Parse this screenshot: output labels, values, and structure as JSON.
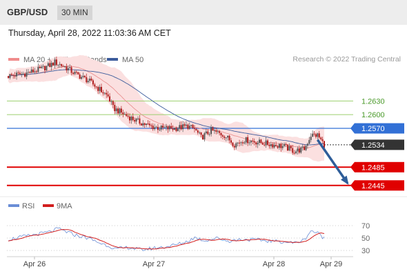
{
  "header": {
    "pair": "GBP/USD",
    "timeframe": "30 MIN"
  },
  "datetime": "Thursday, April 28, 2022 11:03:36 AM CET",
  "legend": {
    "ma20_label": "MA 20 + Bollinger Bands",
    "ma50_label": "MA 50",
    "copyright": "Research © 2022 Trading Central",
    "rsi_label": "RSI",
    "ma9_label": "9MA"
  },
  "colors": {
    "ma20": "#f08c8c",
    "ma50": "#3c5c9c",
    "rsi": "#6a8ed6",
    "ma9": "#d21e1e",
    "up": "#555555",
    "down": "#b01c1c",
    "resistance": "#9bcf6e",
    "support": "#e00000",
    "pivot": "#3270d6",
    "current": "#333333"
  },
  "chart_data": [
    {
      "type": "candlestick",
      "ylim": [
        1.2425,
        1.27
      ],
      "x_labels": [
        "Apr 26",
        "Apr 27",
        "Apr 28",
        "Apr 29"
      ],
      "levels": [
        {
          "label": "1.2630",
          "value": 1.263,
          "kind": "resistance"
        },
        {
          "label": "1.2600",
          "value": 1.26,
          "kind": "resistance"
        },
        {
          "label": "1.2570",
          "value": 1.257,
          "kind": "pivot"
        },
        {
          "label": "1.2534",
          "value": 1.2534,
          "kind": "current"
        },
        {
          "label": "1.2485",
          "value": 1.2485,
          "kind": "support"
        },
        {
          "label": "1.2445",
          "value": 1.2445,
          "kind": "support"
        }
      ],
      "close_keyframes": [
        [
          0,
          1.2685
        ],
        [
          10,
          1.269
        ],
        [
          20,
          1.27
        ],
        [
          26,
          1.271
        ],
        [
          28,
          1.2715
        ],
        [
          34,
          1.2705
        ],
        [
          40,
          1.269
        ],
        [
          48,
          1.2675
        ],
        [
          55,
          1.2655
        ],
        [
          60,
          1.264
        ],
        [
          63,
          1.2615
        ],
        [
          70,
          1.26
        ],
        [
          78,
          1.2585
        ],
        [
          85,
          1.2575
        ],
        [
          92,
          1.257
        ],
        [
          100,
          1.257
        ],
        [
          108,
          1.2575
        ],
        [
          112,
          1.2568
        ],
        [
          116,
          1.255
        ],
        [
          122,
          1.2565
        ],
        [
          130,
          1.2555
        ],
        [
          136,
          1.2535
        ],
        [
          142,
          1.2545
        ],
        [
          150,
          1.254
        ],
        [
          158,
          1.2535
        ],
        [
          166,
          1.253
        ],
        [
          172,
          1.252
        ],
        [
          178,
          1.2525
        ],
        [
          182,
          1.2555
        ],
        [
          186,
          1.2555
        ],
        [
          190,
          1.2534
        ]
      ],
      "candle_count": 191,
      "forecast_arrow": {
        "from": [
          186,
          1.2545
        ],
        "to": [
          204,
          1.245
        ]
      }
    },
    {
      "type": "line",
      "series": [
        "RSI",
        "9MA"
      ],
      "ylim": [
        20,
        80
      ],
      "y_ticks": [
        70,
        50,
        30
      ],
      "rsi_keyframes": [
        [
          0,
          48
        ],
        [
          15,
          55
        ],
        [
          25,
          60
        ],
        [
          30,
          65
        ],
        [
          35,
          60
        ],
        [
          40,
          55
        ],
        [
          48,
          50
        ],
        [
          55,
          42
        ],
        [
          60,
          38
        ],
        [
          65,
          32
        ],
        [
          72,
          35
        ],
        [
          80,
          31
        ],
        [
          88,
          34
        ],
        [
          95,
          36
        ],
        [
          102,
          40
        ],
        [
          108,
          45
        ],
        [
          112,
          51
        ],
        [
          118,
          46
        ],
        [
          126,
          50
        ],
        [
          132,
          45
        ],
        [
          140,
          48
        ],
        [
          150,
          47
        ],
        [
          158,
          45
        ],
        [
          166,
          44
        ],
        [
          172,
          42
        ],
        [
          178,
          47
        ],
        [
          182,
          62
        ],
        [
          186,
          58
        ],
        [
          190,
          50
        ]
      ]
    }
  ]
}
